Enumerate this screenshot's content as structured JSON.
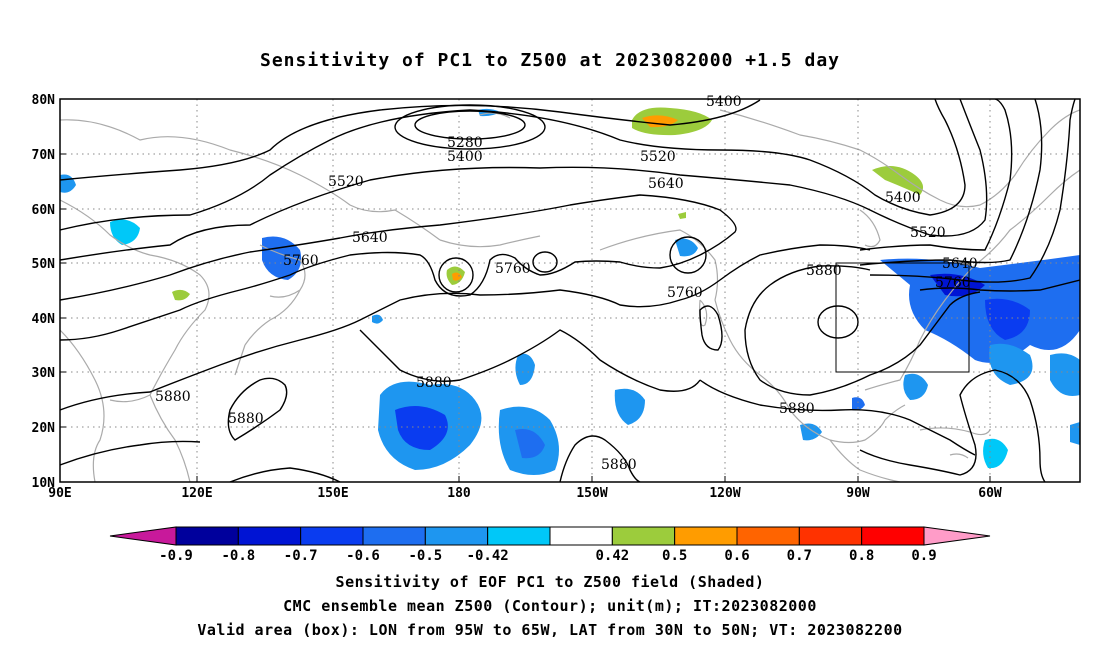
{
  "title": "Sensitivity of PC1 to Z500 at 2023082000 +1.5 day",
  "lat_labels": [
    "80N",
    "70N",
    "60N",
    "50N",
    "40N",
    "30N",
    "20N",
    "10N"
  ],
  "lon_labels": [
    "90E",
    "120E",
    "150E",
    "180",
    "150W",
    "120W",
    "90W",
    "60W"
  ],
  "contour_labels": [
    "5280",
    "5400",
    "5400",
    "5400",
    "5520",
    "5520",
    "5520",
    "5640",
    "5640",
    "5640",
    "5760",
    "5760",
    "5760",
    "5760",
    "5880",
    "5880",
    "5880",
    "5880",
    "5880",
    "5880"
  ],
  "colorbar": {
    "labels": [
      "-0.9",
      "-0.8",
      "-0.7",
      "-0.6",
      "-0.5",
      "-0.42",
      "0.42",
      "0.5",
      "0.6",
      "0.7",
      "0.8",
      "0.9"
    ],
    "colors": [
      "#c8199b",
      "#00009c",
      "#0014d4",
      "#0a3cf0",
      "#1e6ef0",
      "#1e96f0",
      "#00c8f8",
      "#ffffff",
      "#9ccc3c",
      "#ff9c00",
      "#ff6400",
      "#ff3200",
      "#ff0000",
      "#ff9cc8"
    ]
  },
  "valid_box": {
    "lon_from": "95W",
    "lon_to": "65W",
    "lat_from": "30N",
    "lat_to": "50N"
  },
  "footer": {
    "line1": "Sensitivity of EOF PC1 to Z500 field (Shaded)",
    "line2": "CMC ensemble mean Z500 (Contour); unit(m); IT:2023082000",
    "line3": "Valid area (box): LON from 95W to 65W, LAT from 30N to 50N; VT: 2023082200"
  }
}
